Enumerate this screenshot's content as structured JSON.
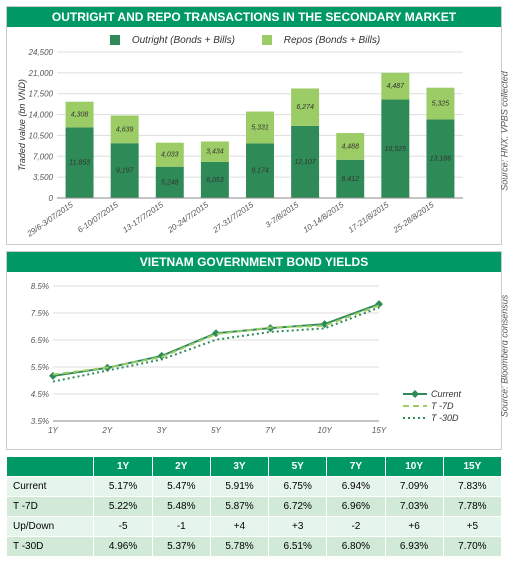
{
  "colors": {
    "brand_green": "#009966",
    "dark_green": "#2e8b57",
    "light_green": "#9ccc65",
    "grid": "#dddddd",
    "text": "#555555",
    "table_row_odd": "#e6f5eb",
    "table_row_even": "#d1ead8"
  },
  "panel1": {
    "title": "OUTRIGHT AND REPO TRANSACTIONS IN THE SECONDARY MARKET",
    "source": "Source: HNX, VPBS collected",
    "legend": {
      "series1": "Outright (Bonds + Bills)",
      "series2": "Repos (Bonds + Bills)"
    },
    "y_label": "Traded value (bn VND)",
    "y_max": 24500,
    "y_step": 3500,
    "categories": [
      "29/6-3/07/2015",
      "6-10/07/2015",
      "13-17/7/2015",
      "20-24/7/2015",
      "27-31/7/2015",
      "3-7/8/2015",
      "10-14/8/2015",
      "17-21/8/2015",
      "25-28/8/2015"
    ],
    "series_outright": [
      11853,
      9197,
      5248,
      6053,
      9174,
      12107,
      6412,
      16525,
      13186
    ],
    "series_repo": [
      4308,
      4639,
      4033,
      3434,
      5331,
      6274,
      4488,
      4487,
      5325
    ],
    "labels_outright": [
      "11,853",
      "9,197",
      "5,248",
      "6,053",
      "9,174",
      "12,107",
      "6,412",
      "16,525",
      "13,186"
    ],
    "labels_repo": [
      "4,308",
      "4,639",
      "4,033",
      "3,434",
      "5,331",
      "6,274",
      "4,488",
      "4,487",
      "5,325"
    ]
  },
  "panel2": {
    "title": "VIETNAM GOVERNMENT BOND YIELDS",
    "source": "Source: Bloomberg consensus",
    "x_labels": [
      "1Y",
      "2Y",
      "3Y",
      "5Y",
      "7Y",
      "10Y",
      "15Y"
    ],
    "y_min": 3.5,
    "y_max": 8.5,
    "y_step": 1.0,
    "series": {
      "Current": {
        "label": "Current",
        "values": [
          5.17,
          5.47,
          5.91,
          6.75,
          6.94,
          7.09,
          7.83
        ],
        "color": "#2e8b57",
        "dash": "",
        "marker": true
      },
      "T7D": {
        "label": "T -7D",
        "values": [
          5.22,
          5.48,
          5.87,
          6.72,
          6.96,
          7.03,
          7.78
        ],
        "color": "#9ccc65",
        "dash": "6,4",
        "marker": false
      },
      "T30D": {
        "label": "T -30D",
        "values": [
          4.96,
          5.37,
          5.78,
          6.51,
          6.8,
          6.93,
          7.7
        ],
        "color": "#2e8b57",
        "dash": "2,3",
        "marker": false
      }
    }
  },
  "table": {
    "columns": [
      "",
      "1Y",
      "2Y",
      "3Y",
      "5Y",
      "7Y",
      "10Y",
      "15Y"
    ],
    "rows": [
      {
        "head": "Current",
        "cells": [
          "5.17%",
          "5.47%",
          "5.91%",
          "6.75%",
          "6.94%",
          "7.09%",
          "7.83%"
        ]
      },
      {
        "head": "T -7D",
        "cells": [
          "5.22%",
          "5.48%",
          "5.87%",
          "6.72%",
          "6.96%",
          "7.03%",
          "7.78%"
        ]
      },
      {
        "head": "Up/Down",
        "cells": [
          "-5",
          "-1",
          "+4",
          "+3",
          "-2",
          "+6",
          "+5"
        ]
      },
      {
        "head": "T -30D",
        "cells": [
          "4.96%",
          "5.37%",
          "5.78%",
          "6.51%",
          "6.80%",
          "6.93%",
          "7.70%"
        ]
      }
    ]
  }
}
